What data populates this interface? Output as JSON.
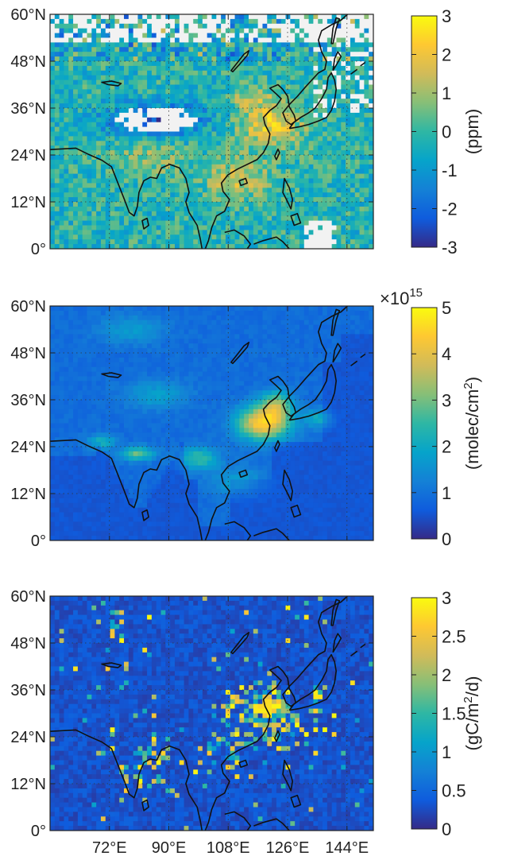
{
  "figure": {
    "lat_labels": [
      "60°N",
      "48°N",
      "36°N",
      "24°N",
      "12°N",
      "0°"
    ],
    "lat_values": [
      60,
      48,
      36,
      24,
      12,
      0
    ],
    "lon_labels": [
      "72°E",
      "90°E",
      "108°E",
      "126°E",
      "144°E"
    ],
    "lon_values": [
      72,
      90,
      108,
      126,
      144
    ],
    "extent": {
      "lon_min": 54,
      "lon_max": 152,
      "lat_min": 0,
      "lat_max": 60
    }
  },
  "panels": [
    {
      "id": "top",
      "colorbar_label": "(ppm)",
      "colorbar_ticks": [
        "3",
        "2",
        "1",
        "0",
        "-1",
        "-2",
        "-3"
      ],
      "colorbar_min": -3,
      "colorbar_max": 3,
      "field": "xco2-anomaly"
    },
    {
      "id": "middle",
      "colorbar_label": "(molec/cm",
      "colorbar_label_sup": "2",
      "colorbar_label_end": ")",
      "colorbar_multiplier": "×10",
      "colorbar_multiplier_exp": "15",
      "colorbar_ticks": [
        "5",
        "4",
        "3",
        "2",
        "1",
        "0"
      ],
      "colorbar_min": 0,
      "colorbar_max": 5,
      "field": "no2-column"
    },
    {
      "id": "bottom",
      "colorbar_label": "(gC/m",
      "colorbar_label_sup": "2",
      "colorbar_label_end": "/d)",
      "colorbar_ticks": [
        "3",
        "2.5",
        "2",
        "1.5",
        "1",
        "0.5",
        "0"
      ],
      "colorbar_min": 0,
      "colorbar_max": 3,
      "field": "fossil-emissions"
    }
  ],
  "colors": {
    "colormap": [
      "#352a87",
      "#0f5cdd",
      "#1481d6",
      "#06a4ca",
      "#2eb7a4",
      "#87bf77",
      "#d1bb59",
      "#fec832",
      "#f9fb0e"
    ],
    "missing": "#f2f2f2",
    "coastline": "#111111"
  }
}
